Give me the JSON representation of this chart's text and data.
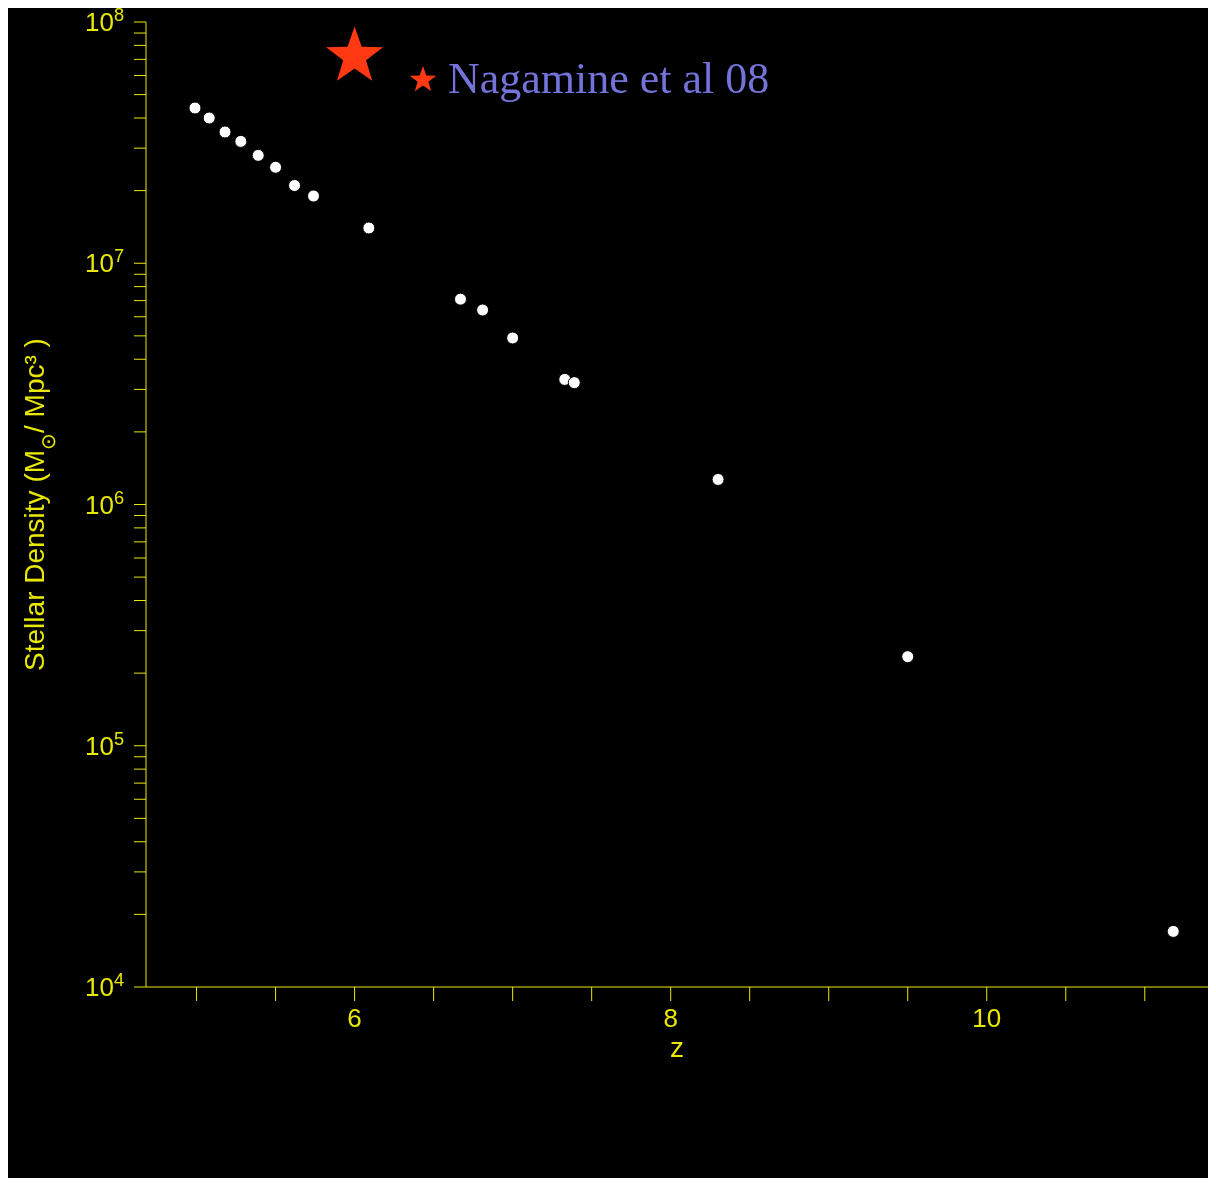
{
  "chart_data": {
    "type": "scatter",
    "xlabel": "z",
    "ylabel": "Stellar Density (M$_{⊙}$/ Mpc³ )",
    "log": "y",
    "xlim": [
      4.68,
      11.4
    ],
    "ylim": [
      10000,
      100000000
    ],
    "xticks": [
      {
        "value": 5,
        "label": null
      },
      {
        "value": 5.5,
        "label": null
      },
      6,
      {
        "value": 6.5,
        "label": null
      },
      {
        "value": 7,
        "label": null
      },
      {
        "value": 7.5,
        "label": null
      },
      8,
      {
        "value": 8.5,
        "label": null
      },
      {
        "value": 9,
        "label": null
      },
      {
        "value": 9.5,
        "label": null
      },
      10,
      {
        "value": 10.5,
        "label": null
      },
      {
        "value": 11,
        "label": null
      }
    ],
    "yticks": [
      {
        "value": 10000,
        "label": "10$^{4}$"
      },
      {
        "value": 20000,
        "label": null
      },
      {
        "value": 30000,
        "label": null
      },
      {
        "value": 40000,
        "label": null
      },
      {
        "value": 50000,
        "label": null
      },
      {
        "value": 60000,
        "label": null
      },
      {
        "value": 70000,
        "label": null
      },
      {
        "value": 80000,
        "label": null
      },
      {
        "value": 90000,
        "label": null
      },
      {
        "value": 100000,
        "label": "10$^{5}$"
      },
      {
        "value": 200000,
        "label": null
      },
      {
        "value": 300000,
        "label": null
      },
      {
        "value": 400000,
        "label": null
      },
      {
        "value": 500000,
        "label": null
      },
      {
        "value": 600000,
        "label": null
      },
      {
        "value": 700000,
        "label": null
      },
      {
        "value": 800000,
        "label": null
      },
      {
        "value": 900000,
        "label": null
      },
      {
        "value": 1000000,
        "label": "10$^{6}$"
      },
      {
        "value": 2000000,
        "label": null
      },
      {
        "value": 3000000,
        "label": null
      },
      {
        "value": 4000000,
        "label": null
      },
      {
        "value": 5000000,
        "label": null
      },
      {
        "value": 6000000,
        "label": null
      },
      {
        "value": 7000000,
        "label": null
      },
      {
        "value": 8000000,
        "label": null
      },
      {
        "value": 9000000,
        "label": null
      },
      {
        "value": 10000000,
        "label": "10$^{7}$"
      },
      {
        "value": 20000000,
        "label": null
      },
      {
        "value": 30000000,
        "label": null
      },
      {
        "value": 40000000,
        "label": null
      },
      {
        "value": 50000000,
        "label": null
      },
      {
        "value": 60000000,
        "label": null
      },
      {
        "value": 70000000,
        "label": null
      },
      {
        "value": 80000000,
        "label": null
      },
      {
        "value": 90000000,
        "label": null
      },
      {
        "value": 100000000,
        "label": "10$^{8}$"
      }
    ],
    "legend": "top",
    "grid": false,
    "series": [
      {
        "color": "#ffffff",
        "marker": "circle",
        "x": [
          4.99,
          5.08,
          5.18,
          5.28,
          5.39,
          5.5,
          5.62,
          5.74,
          6.09,
          6.67,
          6.81,
          7.0,
          7.33,
          7.39,
          8.3,
          9.5,
          11.18
        ],
        "values": [
          44000000,
          40000000,
          35000000,
          32000000,
          28000000,
          25000000,
          21000000,
          19000000,
          14000000,
          7100000,
          6400000,
          4900000,
          3300000,
          3200000,
          1270000,
          234000,
          17000
        ]
      },
      {
        "name": "Nagamine et al 08",
        "color": "#ff3a12",
        "marker": "star",
        "x": [
          6.0
        ],
        "values": [
          72000000
        ]
      }
    ]
  }
}
